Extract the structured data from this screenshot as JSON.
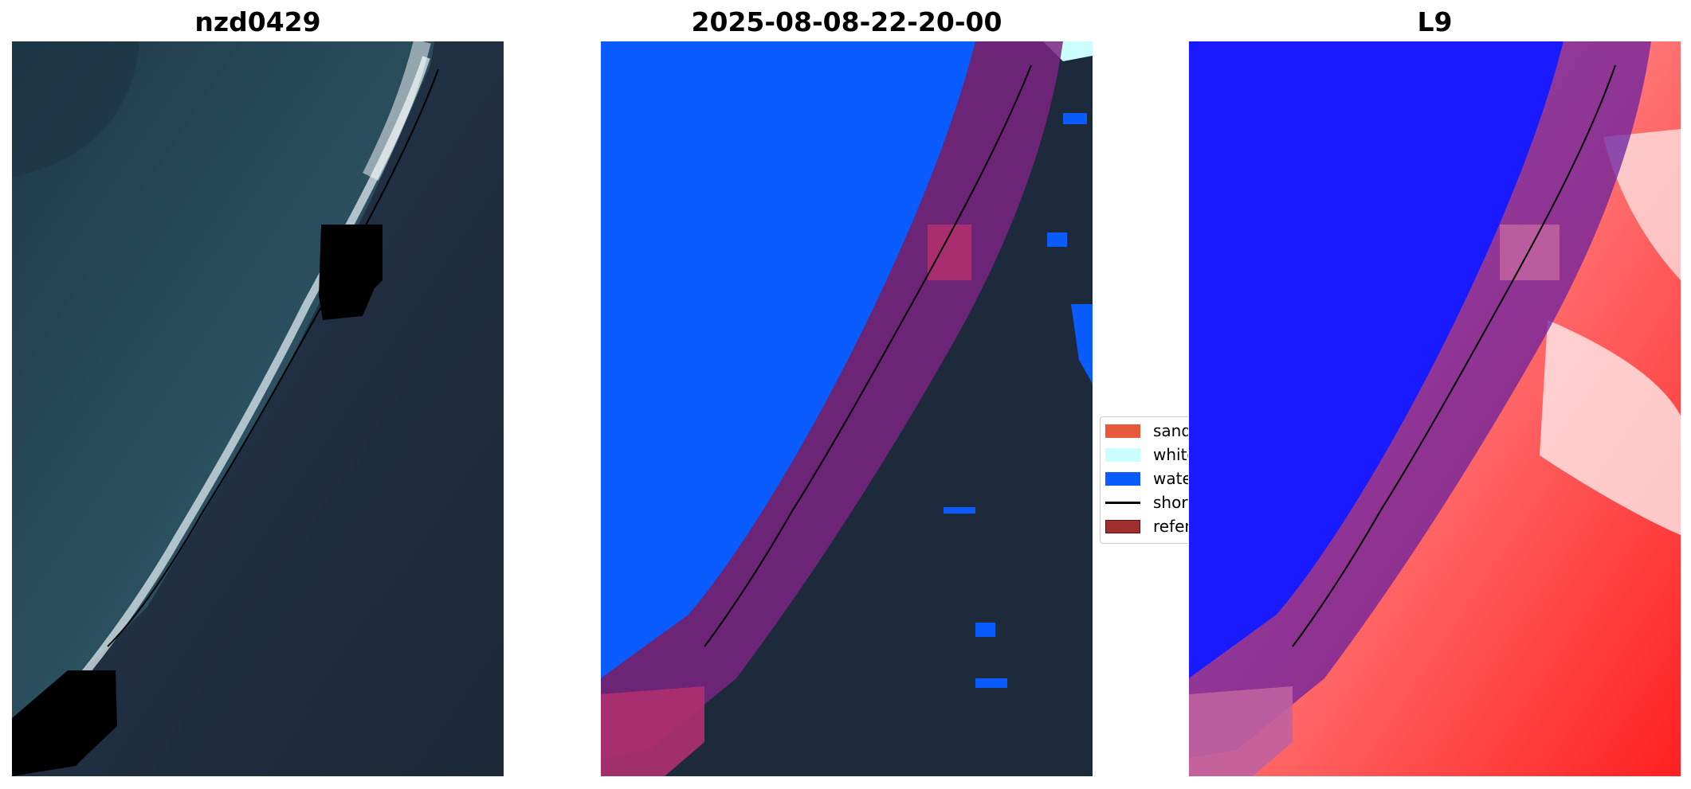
{
  "panels": [
    {
      "title": "nzd0429",
      "view": "rgb-satellite-image"
    },
    {
      "title": "2025-08-08-22-20-00",
      "view": "classified-image"
    },
    {
      "title": "L9",
      "view": "water-index-image"
    }
  ],
  "legend": {
    "items": [
      {
        "label": "sand",
        "color": "#e8583a",
        "kind": "patch"
      },
      {
        "label": "white-water",
        "color": "#ccffff",
        "kind": "patch"
      },
      {
        "label": "water",
        "color": "#0a5cff",
        "kind": "patch"
      },
      {
        "label": "shoreline",
        "color": "#000000",
        "kind": "line"
      },
      {
        "label": "reference",
        "color": "#a03030",
        "kind": "patch"
      }
    ]
  },
  "colors": {
    "ocean": "#294a5c",
    "land": "#1c2a3c",
    "water_class": "#0a5cff",
    "buffer_overlay": "#8b1a6e",
    "index_water": "#1a1aff",
    "index_land": "#ff3030"
  }
}
